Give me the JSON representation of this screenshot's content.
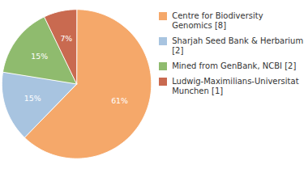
{
  "chart_data": {
    "type": "pie",
    "categories": [
      "Centre for Biodiversity\nGenomics [8]",
      "Sharjah Seed Bank & Herbarium [2]",
      "Mined from GenBank, NCBI [2]",
      "Ludwig-Maximilians-Universitat\nMunchen [1]"
    ],
    "values": [
      61,
      15,
      15,
      7
    ],
    "value_labels": [
      "61%",
      "15%",
      "15%",
      "7%"
    ],
    "colors": [
      "#F5A86A",
      "#A8C4E0",
      "#8FBB6E",
      "#C96A50"
    ],
    "data_labels": true,
    "legend": "right"
  }
}
